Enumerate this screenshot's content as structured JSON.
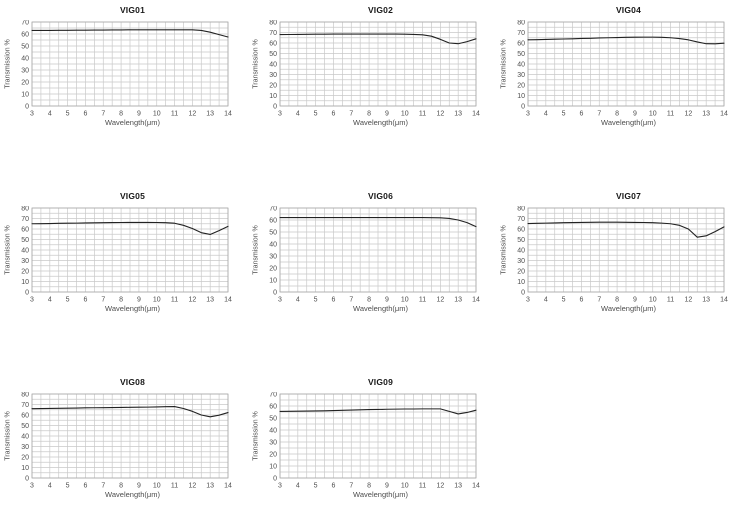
{
  "page": {
    "background": "#ffffff"
  },
  "styles": {
    "grid_color": "#c9c9c9",
    "frame_color": "#a8a8a8",
    "line_color": "#222222",
    "tick_color": "#4d4d4d",
    "label_color": "#4d4d4d",
    "title_color": "#1a1a1a"
  },
  "chart_data": [
    {
      "type": "line",
      "title": "VIG01",
      "xlabel": "Wavelength(μm)",
      "ylabel": "Transmission %",
      "xlim": [
        3,
        14
      ],
      "ylim": [
        0,
        70
      ],
      "x_tick_labels": [
        3,
        4,
        5,
        6,
        7,
        8,
        9,
        10,
        11,
        12,
        13,
        14
      ],
      "y_tick_labels": [
        0,
        10,
        20,
        30,
        40,
        50,
        60,
        70
      ],
      "x_grid_step": 0.5,
      "y_grid_step": 5,
      "grid": true,
      "x": [
        3,
        3.5,
        4,
        4.5,
        5,
        5.5,
        6,
        6.5,
        7,
        7.5,
        8,
        8.5,
        9,
        9.5,
        10,
        10.5,
        11,
        11.5,
        12,
        12.5,
        13,
        13.5,
        14
      ],
      "values": [
        63,
        63,
        63,
        63.1,
        63.1,
        63.2,
        63.2,
        63.3,
        63.3,
        63.4,
        63.4,
        63.5,
        63.5,
        63.5,
        63.5,
        63.5,
        63.5,
        63.5,
        63.5,
        63,
        61.5,
        59.5,
        57.5
      ]
    },
    {
      "type": "line",
      "title": "VIG02",
      "xlabel": "Wavelength(μm)",
      "ylabel": "Transmission %",
      "xlim": [
        3,
        14
      ],
      "ylim": [
        0,
        80
      ],
      "x_tick_labels": [
        3,
        4,
        5,
        6,
        7,
        8,
        9,
        10,
        11,
        12,
        13,
        14
      ],
      "y_tick_labels": [
        0,
        10,
        20,
        30,
        40,
        50,
        60,
        70,
        80
      ],
      "x_grid_step": 0.5,
      "y_grid_step": 5,
      "grid": true,
      "x": [
        3,
        3.5,
        4,
        4.5,
        5,
        5.5,
        6,
        6.5,
        7,
        7.5,
        8,
        8.5,
        9,
        9.5,
        10,
        10.5,
        11,
        11.5,
        12,
        12.5,
        13,
        13.5,
        14
      ],
      "values": [
        68,
        68.1,
        68.2,
        68.3,
        68.4,
        68.4,
        68.5,
        68.5,
        68.5,
        68.5,
        68.5,
        68.5,
        68.5,
        68.5,
        68.4,
        68.2,
        67.8,
        66.5,
        63.5,
        60,
        59.3,
        61.3,
        64
      ]
    },
    {
      "type": "line",
      "title": "VIG04",
      "xlabel": "Wavelength(μm)",
      "ylabel": "Transmission %",
      "xlim": [
        3,
        14
      ],
      "ylim": [
        0,
        80
      ],
      "x_tick_labels": [
        3,
        4,
        5,
        6,
        7,
        8,
        9,
        10,
        11,
        12,
        13,
        14
      ],
      "y_tick_labels": [
        0,
        10,
        20,
        30,
        40,
        50,
        60,
        70,
        80
      ],
      "x_grid_step": 0.5,
      "y_grid_step": 5,
      "grid": true,
      "x": [
        3,
        3.5,
        4,
        4.5,
        5,
        5.5,
        6,
        6.5,
        7,
        7.5,
        8,
        8.5,
        9,
        9.5,
        10,
        10.5,
        11,
        11.5,
        12,
        12.5,
        13,
        13.5,
        14
      ],
      "values": [
        63,
        63.2,
        63.4,
        63.6,
        63.8,
        64,
        64.3,
        64.5,
        64.8,
        65,
        65.2,
        65.4,
        65.5,
        65.6,
        65.6,
        65.4,
        65,
        64.2,
        63,
        61,
        59.3,
        59.2,
        59.8
      ]
    },
    {
      "type": "line",
      "title": "VIG05",
      "xlabel": "Wavelength(μm)",
      "ylabel": "Transmission %",
      "xlim": [
        3,
        14
      ],
      "ylim": [
        0,
        80
      ],
      "x_tick_labels": [
        3,
        4,
        5,
        6,
        7,
        8,
        9,
        10,
        11,
        12,
        13,
        14
      ],
      "y_tick_labels": [
        0,
        10,
        20,
        30,
        40,
        50,
        60,
        70,
        80
      ],
      "x_grid_step": 0.5,
      "y_grid_step": 5,
      "grid": true,
      "x": [
        3,
        3.5,
        4,
        4.5,
        5,
        5.5,
        6,
        6.5,
        7,
        7.5,
        8,
        8.5,
        9,
        9.5,
        10,
        10.5,
        11,
        11.5,
        12,
        12.5,
        13,
        13.5,
        14
      ],
      "values": [
        65,
        65.1,
        65.2,
        65.4,
        65.5,
        65.6,
        65.8,
        65.9,
        66,
        66.1,
        66.2,
        66.3,
        66.3,
        66.3,
        66.2,
        66,
        65.5,
        63.5,
        60.5,
        56.5,
        54.8,
        58.5,
        62.5
      ]
    },
    {
      "type": "line",
      "title": "VIG06",
      "xlabel": "Wavelength(μm)",
      "ylabel": "Transmission %",
      "xlim": [
        3,
        14
      ],
      "ylim": [
        0,
        70
      ],
      "x_tick_labels": [
        3,
        4,
        5,
        6,
        7,
        8,
        9,
        10,
        11,
        12,
        13,
        14
      ],
      "y_tick_labels": [
        0,
        10,
        20,
        30,
        40,
        50,
        60,
        70
      ],
      "x_grid_step": 0.5,
      "y_grid_step": 5,
      "grid": true,
      "x": [
        3,
        3.5,
        4,
        4.5,
        5,
        5.5,
        6,
        6.5,
        7,
        7.5,
        8,
        8.5,
        9,
        9.5,
        10,
        10.5,
        11,
        11.5,
        12,
        12.5,
        13,
        13.5,
        14
      ],
      "values": [
        62,
        62,
        62,
        62,
        62,
        62,
        62,
        62,
        62,
        62,
        62,
        62,
        62,
        62,
        62,
        62,
        62,
        61.9,
        61.8,
        61.3,
        60,
        57.8,
        54.5
      ]
    },
    {
      "type": "line",
      "title": "VIG07",
      "xlabel": "Wavelength(μm)",
      "ylabel": "Transmission %",
      "xlim": [
        3,
        14
      ],
      "ylim": [
        0,
        80
      ],
      "x_tick_labels": [
        3,
        4,
        5,
        6,
        7,
        8,
        9,
        10,
        11,
        12,
        13,
        14
      ],
      "y_tick_labels": [
        0,
        10,
        20,
        30,
        40,
        50,
        60,
        70,
        80
      ],
      "x_grid_step": 0.5,
      "y_grid_step": 5,
      "grid": true,
      "x": [
        3,
        3.5,
        4,
        4.5,
        5,
        5.5,
        6,
        6.5,
        7,
        7.5,
        8,
        8.5,
        9,
        9.5,
        10,
        10.5,
        11,
        11.5,
        12,
        12.5,
        13,
        13.5,
        14
      ],
      "values": [
        65.2,
        65.4,
        65.6,
        65.8,
        66,
        66.1,
        66.3,
        66.4,
        66.5,
        66.5,
        66.5,
        66.4,
        66.3,
        66.2,
        66,
        65.6,
        65,
        63.5,
        60,
        52.2,
        53.5,
        57.5,
        62
      ]
    },
    {
      "type": "line",
      "title": "VIG08",
      "xlabel": "Wavelength(μm)",
      "ylabel": "Transmission %",
      "xlim": [
        3,
        14
      ],
      "ylim": [
        0,
        80
      ],
      "x_tick_labels": [
        3,
        4,
        5,
        6,
        7,
        8,
        9,
        10,
        11,
        12,
        13,
        14
      ],
      "y_tick_labels": [
        0,
        10,
        20,
        30,
        40,
        50,
        60,
        70,
        80
      ],
      "x_grid_step": 0.5,
      "y_grid_step": 5,
      "grid": true,
      "x": [
        3,
        3.5,
        4,
        4.5,
        5,
        5.5,
        6,
        6.5,
        7,
        7.5,
        8,
        8.5,
        9,
        9.5,
        10,
        10.5,
        11,
        11.5,
        12,
        12.5,
        13,
        13.5,
        14
      ],
      "values": [
        66,
        66.1,
        66.3,
        66.4,
        66.5,
        66.6,
        66.8,
        66.9,
        67,
        67.1,
        67.2,
        67.3,
        67.4,
        67.5,
        67.7,
        67.9,
        68,
        66.2,
        63.5,
        60,
        58.3,
        59.8,
        62.3
      ]
    },
    {
      "type": "line",
      "title": "VIG09",
      "xlabel": "Wavelength(μm)",
      "ylabel": "Transmission %",
      "xlim": [
        3,
        14
      ],
      "ylim": [
        0,
        70
      ],
      "x_tick_labels": [
        3,
        4,
        5,
        6,
        7,
        8,
        9,
        10,
        11,
        12,
        13,
        14
      ],
      "y_tick_labels": [
        0,
        10,
        20,
        30,
        40,
        50,
        60,
        70
      ],
      "x_grid_step": 0.5,
      "y_grid_step": 5,
      "grid": true,
      "x": [
        3,
        3.5,
        4,
        4.5,
        5,
        5.5,
        6,
        6.5,
        7,
        7.5,
        8,
        8.5,
        9,
        9.5,
        10,
        10.5,
        11,
        11.5,
        12,
        12.5,
        13,
        13.5,
        14
      ],
      "values": [
        55.5,
        55.6,
        55.7,
        55.8,
        55.9,
        56,
        56.2,
        56.4,
        56.6,
        56.8,
        57,
        57.1,
        57.3,
        57.4,
        57.5,
        57.5,
        57.6,
        57.6,
        57.6,
        55.5,
        53.4,
        54.6,
        56.5
      ]
    }
  ]
}
